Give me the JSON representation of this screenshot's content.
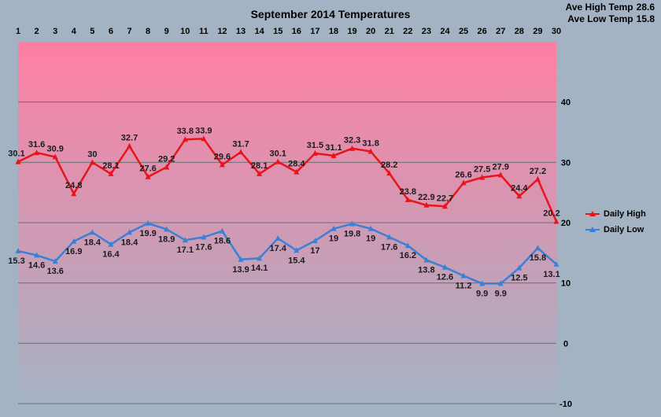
{
  "chart_data": {
    "type": "line",
    "title": "September 2014 Temperatures",
    "categories": [
      "1",
      "2",
      "3",
      "4",
      "5",
      "6",
      "7",
      "8",
      "9",
      "10",
      "11",
      "12",
      "13",
      "14",
      "15",
      "16",
      "17",
      "18",
      "19",
      "20",
      "21",
      "22",
      "23",
      "24",
      "25",
      "26",
      "27",
      "28",
      "29",
      "30"
    ],
    "series": [
      {
        "name": "Daily High",
        "color": "#e8141b",
        "values": [
          30.1,
          31.6,
          30.9,
          24.8,
          30,
          28.1,
          32.7,
          27.6,
          29.2,
          33.8,
          33.9,
          29.6,
          31.7,
          28.1,
          30.1,
          28.4,
          31.5,
          31.1,
          32.3,
          31.8,
          28.2,
          23.8,
          22.9,
          22.7,
          26.6,
          27.5,
          27.9,
          24.4,
          27.2,
          20.2
        ]
      },
      {
        "name": "Daily Low",
        "color": "#3a80d6",
        "values": [
          15.3,
          14.6,
          13.6,
          16.9,
          18.4,
          16.4,
          18.4,
          19.9,
          18.9,
          17.1,
          17.6,
          18.6,
          13.9,
          14.1,
          17.4,
          15.4,
          17,
          19,
          19.8,
          19,
          17.6,
          16.2,
          13.8,
          12.6,
          11.2,
          9.9,
          9.9,
          12.5,
          15.8,
          13.1
        ]
      }
    ],
    "yticks": [
      "-10",
      "0",
      "10",
      "20",
      "30",
      "40"
    ],
    "ylim": [
      -10,
      50
    ],
    "grid": true,
    "legend": "right",
    "stats": [
      {
        "label": "Ave High Temp",
        "value": "28.6"
      },
      {
        "label": "Ave Low Temp",
        "value": "15.8"
      }
    ],
    "colors": {
      "band_top": "#fe7fa3",
      "band_bottom": "#a4b3c4",
      "gridline": "#6e6e72"
    }
  }
}
